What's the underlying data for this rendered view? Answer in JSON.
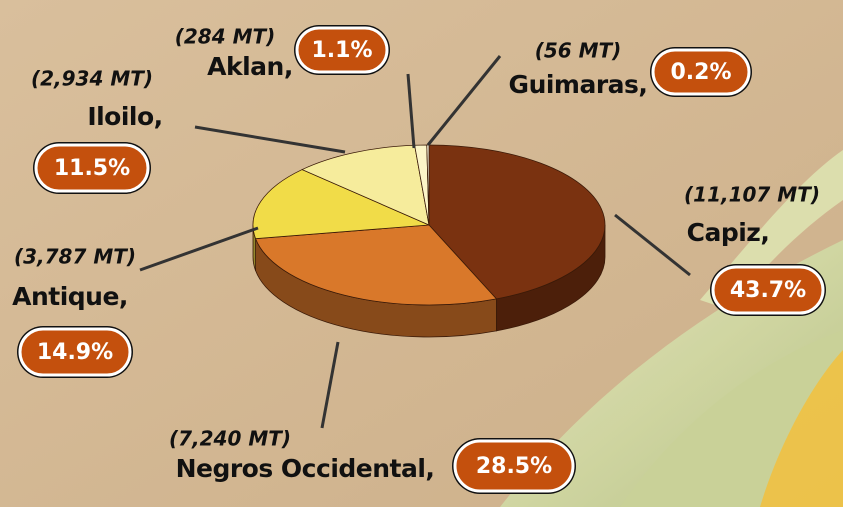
{
  "chart_data": {
    "type": "pie",
    "categories": [
      "Capiz,",
      "Negros Occidental,",
      "Antique,",
      "Iloilo,",
      "Aklan,",
      "Guimaras,"
    ],
    "values": [
      43.7,
      28.5,
      14.9,
      11.5,
      1.1,
      0.2
    ],
    "value_labels": [
      "43.7%",
      "28.5%",
      "14.9%",
      "11.5%",
      "1.1%",
      "0.2%"
    ],
    "tonnage_labels": [
      "(11,107 MT)",
      "(7,240 MT)",
      "(3,787 MT)",
      "(2,934 MT)",
      "(284 MT)",
      "(56 MT)"
    ],
    "colors": [
      "#7a3210",
      "#d9782a",
      "#f1dc48",
      "#f6ec9c",
      "#fcf5c8",
      "#fffbe4"
    ]
  }
}
